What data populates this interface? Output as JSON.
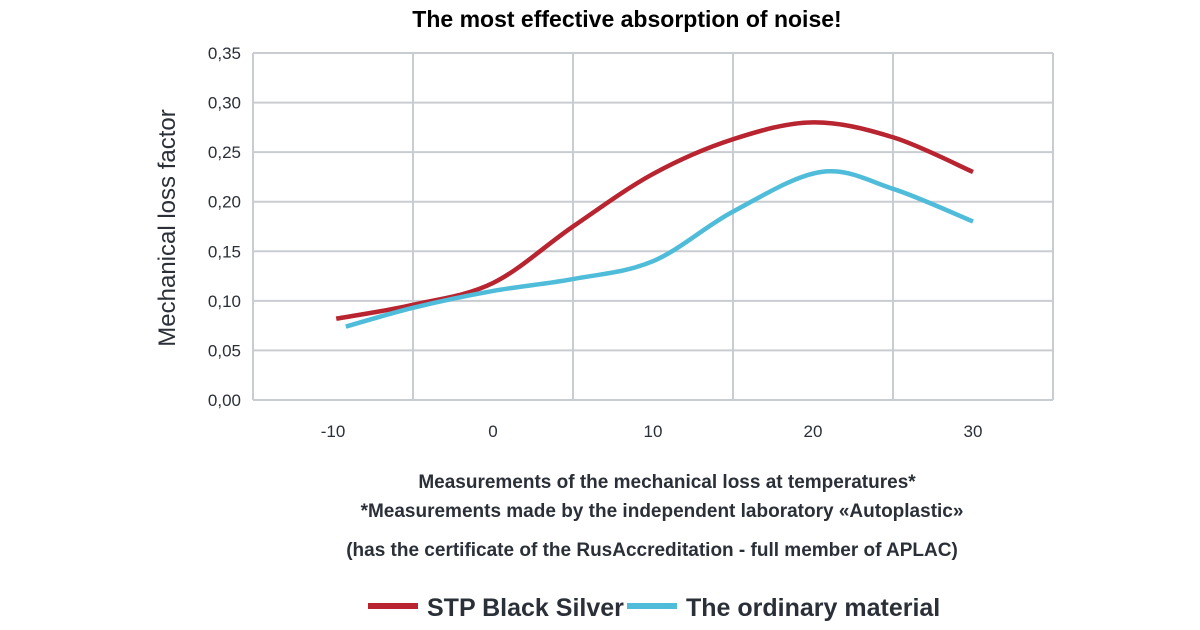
{
  "chart_data": {
    "type": "line",
    "title": "The most effective absorption of noise!",
    "ylabel": "Mechanical loss factor",
    "xlabel": "Measurements of the mechanical loss at temperatures*",
    "notes": [
      "*Measurements made by the independent laboratory «Autoplastic»",
      "(has the certificate of the RusAccreditation - full member of APLAC)"
    ],
    "xlim": [
      -15,
      35
    ],
    "ylim": [
      0,
      0.35
    ],
    "xticks": [
      "-10",
      "0",
      "10",
      "20",
      "30"
    ],
    "xtick_values": [
      -10,
      0,
      10,
      20,
      30
    ],
    "yticks": [
      "0,00",
      "0,05",
      "0,10",
      "0,15",
      "0,20",
      "0,25",
      "0,30",
      "0,35"
    ],
    "grid": true,
    "legend_position": "bottom",
    "series": [
      {
        "name": "STP Black Silver",
        "color": "#b8242f",
        "x": [
          -9.8,
          -5,
          0,
          5,
          10,
          15,
          20,
          25,
          30
        ],
        "y": [
          0.082,
          0.096,
          0.118,
          0.175,
          0.228,
          0.263,
          0.28,
          0.265,
          0.23
        ]
      },
      {
        "name": "The ordinary material",
        "color": "#4fbcd9",
        "x": [
          -9.2,
          -5,
          0,
          5,
          10,
          15,
          20.5,
          25,
          30
        ],
        "y": [
          0.074,
          0.093,
          0.11,
          0.122,
          0.14,
          0.19,
          0.23,
          0.213,
          0.18
        ]
      }
    ]
  }
}
